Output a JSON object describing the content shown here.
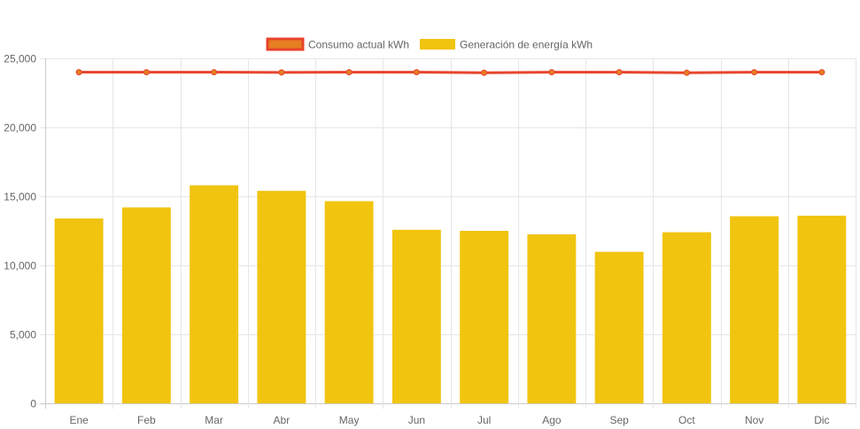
{
  "chart_data": {
    "type": "bar",
    "title": "",
    "xlabel": "",
    "ylabel": "",
    "categories": [
      "Ene",
      "Feb",
      "Mar",
      "Abr",
      "May",
      "Jun",
      "Jul",
      "Ago",
      "Sep",
      "Oct",
      "Nov",
      "Dic"
    ],
    "ylim": [
      0,
      25000
    ],
    "yticks": [
      0,
      5000,
      10000,
      15000,
      20000,
      25000
    ],
    "ytick_labels": [
      "0",
      "5,000",
      "10,000",
      "15,000",
      "20,000",
      "25,000"
    ],
    "grid": true,
    "legend_position": "top-center",
    "series": [
      {
        "name": "Consumo actual kWh",
        "type": "line",
        "color": "#e8442b",
        "point_color": "#e67e22",
        "values": [
          24000,
          24000,
          24000,
          23980,
          24000,
          24000,
          23960,
          24000,
          24000,
          23960,
          24000,
          24000
        ]
      },
      {
        "name": "Generación de energía kWh",
        "type": "bar",
        "color": "#f1c40f",
        "values": [
          13400,
          14200,
          15800,
          15400,
          14650,
          12580,
          12500,
          12250,
          10980,
          12400,
          13560,
          13600
        ]
      }
    ]
  }
}
